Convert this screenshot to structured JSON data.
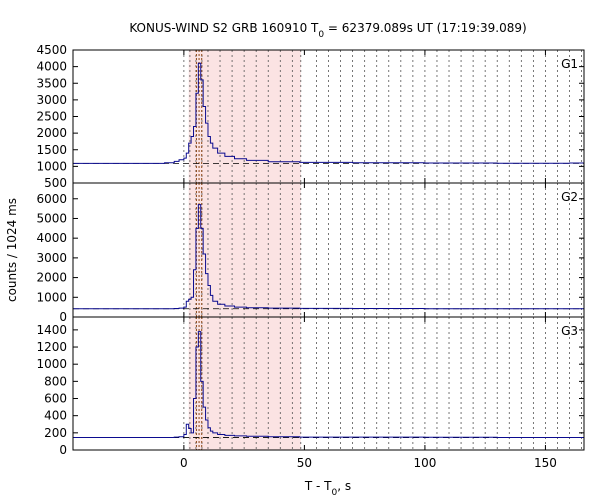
{
  "chart_data": {
    "type": "line",
    "title": "KONUS-WIND S2 GRB 160910 T",
    "title_sub": "0",
    "title_rest": " = 62379.089s UT (17:19:39.089)",
    "xlabel": "T - T",
    "xlabel_sub": "0",
    "xlabel_rest": ", s",
    "ylabel": "counts / 1024 ms",
    "xlim": [
      -46,
      166
    ],
    "xticks": [
      0,
      50,
      100,
      150
    ],
    "xtick_labels": [
      "0",
      "50",
      "100",
      "150"
    ],
    "shaded_interval": [
      2,
      48.5
    ],
    "dashed_vlines": [
      0,
      2.5,
      5,
      7.5,
      10,
      15,
      20,
      25,
      30,
      35,
      40,
      45,
      48.5,
      55,
      60,
      65,
      70,
      75,
      80,
      85,
      90,
      95,
      100,
      105,
      110,
      115,
      120,
      125,
      130,
      135,
      140,
      145,
      150,
      155,
      160,
      165
    ],
    "brown_dotted_vlines": [
      5.2,
      6.3,
      7.4
    ],
    "time_bins_s": [
      -12,
      -8,
      -4,
      -2,
      0,
      1,
      2,
      3,
      4,
      5,
      6,
      7,
      8,
      9,
      10,
      11,
      12,
      14,
      17,
      21,
      26,
      35,
      48,
      70,
      100,
      130,
      160
    ],
    "panels": [
      {
        "name": "G1",
        "ylim": [
          500,
          4500
        ],
        "yticks": [
          500,
          1000,
          1500,
          2000,
          2500,
          3000,
          3500,
          4000,
          4500
        ],
        "ytick_labels": [
          "500",
          "1000",
          "1500",
          "2000",
          "2500",
          "3000",
          "3500",
          "4000",
          "4500"
        ],
        "background": 1090,
        "counts": [
          1090,
          1110,
          1150,
          1200,
          1250,
          1400,
          1700,
          1900,
          2200,
          3200,
          4100,
          3600,
          2800,
          2300,
          1900,
          1700,
          1550,
          1400,
          1300,
          1230,
          1180,
          1140,
          1120,
          1110,
          1100,
          1095,
          1100
        ]
      },
      {
        "name": "G2",
        "ylim": [
          0,
          6800
        ],
        "yticks": [
          0,
          1000,
          2000,
          3000,
          4000,
          5000,
          6000
        ],
        "ytick_labels": [
          "0",
          "1000",
          "2000",
          "3000",
          "4000",
          "5000",
          "6000"
        ],
        "background": 420,
        "counts": [
          420,
          420,
          430,
          450,
          500,
          800,
          900,
          1000,
          2400,
          4500,
          5700,
          4500,
          3200,
          2200,
          1600,
          1100,
          800,
          650,
          560,
          500,
          470,
          450,
          440,
          430,
          420,
          420,
          420
        ]
      },
      {
        "name": "G3",
        "ylim": [
          0,
          1550
        ],
        "yticks": [
          0,
          200,
          400,
          600,
          800,
          1000,
          1200,
          1400
        ],
        "ytick_labels": [
          "0",
          "200",
          "400",
          "600",
          "800",
          "1000",
          "1200",
          "1400"
        ],
        "background": 145,
        "counts": [
          145,
          145,
          150,
          155,
          180,
          300,
          250,
          200,
          600,
          1200,
          1380,
          800,
          500,
          350,
          260,
          220,
          200,
          180,
          170,
          165,
          160,
          155,
          150,
          150,
          148,
          146,
          145
        ]
      }
    ]
  }
}
